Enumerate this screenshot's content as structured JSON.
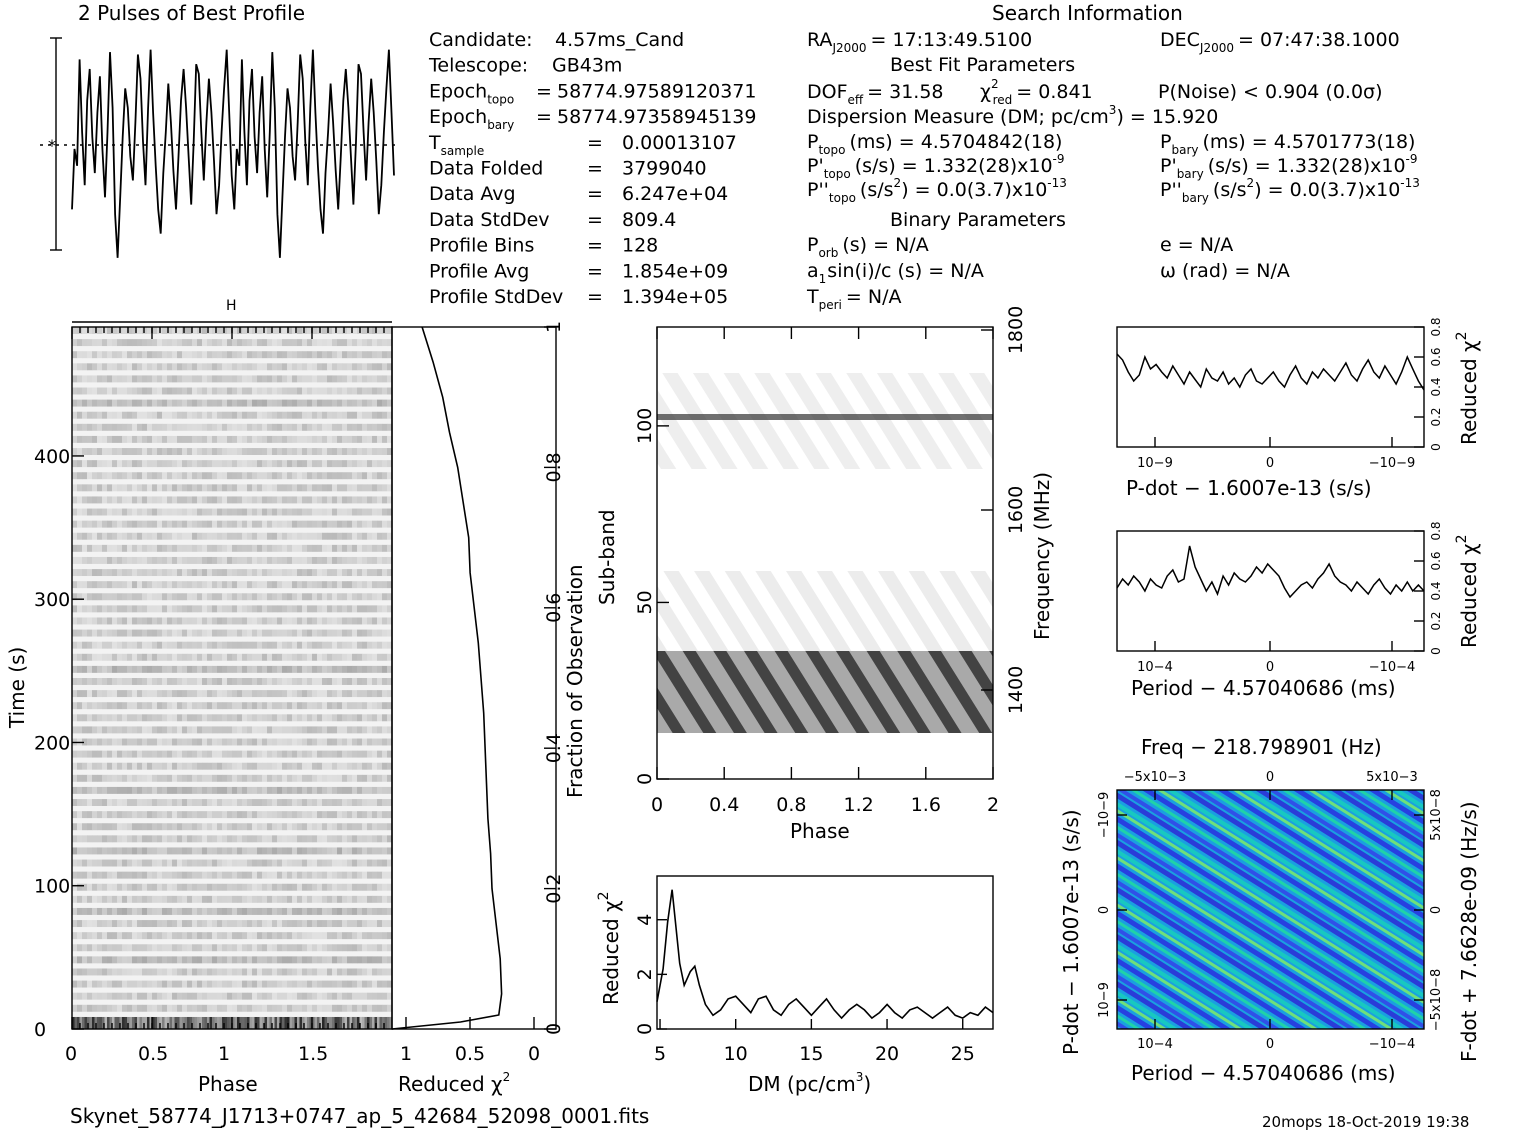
{
  "figure": {
    "top_left_title": "2 Pulses of Best Profile",
    "search_info_title": "Search Information",
    "best_fit_title": "Best Fit Parameters",
    "binary_title": "Binary Parameters",
    "footer_file": "Skynet_58774_J1713+0747_ap_5_42684_52098_0001.fits",
    "footer_stamp": "20mops 18-Oct-2019 19:38"
  },
  "candidate_info": [
    {
      "label": "Candidate:",
      "sub": "",
      "eq": "",
      "value": "4.57ms_Cand"
    },
    {
      "label": "Telescope:",
      "sub": "",
      "eq": "",
      "value": "GB43m"
    },
    {
      "label": "Epoch",
      "sub": "topo",
      "eq": "=",
      "value": "58774.97589120371"
    },
    {
      "label": "Epoch",
      "sub": "bary",
      "eq": "=",
      "value": "58774.97358945139"
    },
    {
      "label": "T",
      "sub": "sample",
      "eq": "=",
      "value": "0.00013107"
    },
    {
      "label": "Data Folded",
      "sub": "",
      "eq": "=",
      "value": "3799040"
    },
    {
      "label": "Data Avg",
      "sub": "",
      "eq": "=",
      "value": "6.247e+04"
    },
    {
      "label": "Data StdDev",
      "sub": "",
      "eq": "=",
      "value": "809.4"
    },
    {
      "label": "Profile Bins",
      "sub": "",
      "eq": "=",
      "value": "128"
    },
    {
      "label": "Profile Avg",
      "sub": "",
      "eq": "=",
      "value": "1.854e+09"
    },
    {
      "label": "Profile StdDev",
      "sub": "",
      "eq": "=",
      "value": "1.394e+05"
    }
  ],
  "search_info": {
    "ra_label": "RA",
    "ra_sub": "J2000",
    "ra_value": "= 17:13:49.5100",
    "dec_label": "DEC",
    "dec_sub": "J2000",
    "dec_value": "= 07:47:38.1000",
    "dof_label": "DOF",
    "dof_sub": "eff",
    "dof_value": "= 31.58",
    "chi_label": "χ",
    "chi_sup": "2",
    "chi_sub": "red",
    "chi_value": "= 0.841",
    "pnoise": "P(Noise) < 0.904   (0.0σ)",
    "dm_line": "Dispersion Measure (DM; pc/cm",
    "dm_sup": "3",
    "dm_tail": ") = 15.920",
    "p_topo_label": "P",
    "p_topo_sub": "topo",
    "p_topo_value": "(ms)  =  4.5704842(18)",
    "p_bary_label": "P",
    "p_bary_sub": "bary",
    "p_bary_value": "(ms)  =  4.5701773(18)",
    "pd_topo_label": "P'",
    "pd_topo_sub": "topo",
    "pd_topo_value": "(s/s) =  1.332(28)x10",
    "pd_topo_exp": "-9",
    "pd_bary_label": "P'",
    "pd_bary_sub": "bary",
    "pd_bary_value": "(s/s) =  1.332(28)x10",
    "pd_bary_exp": "-9",
    "pdd_topo_label": "P''",
    "pdd_topo_sub": "topo",
    "pdd_topo_value": "(s/s",
    "pdd_topo_sup": "2",
    "pdd_topo_tail": ") = 0.0(3.7)x10",
    "pdd_topo_exp": "-13",
    "pdd_bary_label": "P''",
    "pdd_bary_sub": "bary",
    "pdd_bary_value": "(s/s",
    "pdd_bary_sup": "2",
    "pdd_bary_tail": ") = 0.0(3.7)x10",
    "pdd_bary_exp": "-13",
    "porb_label": "P",
    "porb_sub": "orb",
    "porb_value": "(s) = N/A",
    "e_line": "e = N/A",
    "a1_label": "a",
    "a1_sub": "1",
    "a1_value": "sin(i)/c (s) = N/A",
    "omega_line": "ω (rad) = N/A",
    "tperi_label": "T",
    "tperi_sub": "peri",
    "tperi_value": "= N/A"
  },
  "axes_text": {
    "time_ylabel": "Time (s)",
    "phase_xlabel": "Phase",
    "redchi_xlabel": "Reduced χ",
    "redchi_sup": "2",
    "fraction_ylabel": "Fraction of Observation",
    "subband_ylabel": "Sub-band",
    "freq_ylabel": "Frequency (MHz)",
    "phase2_xlabel": "Phase",
    "dm_xlabel": "DM (pc/cm",
    "dm_sup": "3",
    "dm_xtail": ")",
    "dm_ylabel": "Reduced χ",
    "dm_ysup": "2",
    "pdot_xlabel": "P-dot − 1.6007e-13 (s/s)",
    "period_xlabel": "Period − 4.57040686 (ms)",
    "redchi_side": "Reduced χ",
    "redchi_side_sup": "2",
    "freq_top": "Freq − 218.798901 (Hz)",
    "pdot_left": "P-dot − 1.6007e-13 (s/s)",
    "fdot_right": "F-dot + 7.6628e-09 (Hz/s)",
    "period_bottom": "Period − 4.57040686 (ms)"
  },
  "chart_data": [
    {
      "type": "line",
      "title": "2 Pulses of Best Profile",
      "phase_range": [
        0,
        2
      ],
      "bins": 128,
      "values": [
        0.3,
        0.55,
        0.48,
        0.92,
        0.62,
        0.4,
        0.75,
        0.88,
        0.6,
        0.45,
        0.7,
        0.85,
        0.55,
        0.35,
        0.62,
        0.95,
        0.72,
        0.28,
        0.1,
        0.35,
        0.6,
        0.8,
        0.72,
        0.52,
        0.42,
        0.66,
        0.94,
        0.84,
        0.58,
        0.4,
        0.72,
        0.96,
        0.7,
        0.48,
        0.3,
        0.2,
        0.45,
        0.62,
        0.82,
        0.66,
        0.46,
        0.3,
        0.52,
        0.75,
        0.88,
        0.72,
        0.52,
        0.32,
        0.58,
        0.9,
        0.86,
        0.62,
        0.42,
        0.66,
        0.84,
        0.7,
        0.5,
        0.28,
        0.4,
        0.62,
        0.8,
        0.96,
        0.7,
        0.44,
        0.3,
        0.55,
        0.48,
        0.92,
        0.62,
        0.4,
        0.75,
        0.88,
        0.6,
        0.45,
        0.7,
        0.85,
        0.55,
        0.35,
        0.62,
        0.95,
        0.72,
        0.28,
        0.1,
        0.35,
        0.6,
        0.8,
        0.72,
        0.52,
        0.42,
        0.66,
        0.94,
        0.84,
        0.58,
        0.4,
        0.72,
        0.96,
        0.7,
        0.48,
        0.3,
        0.2,
        0.45,
        0.62,
        0.82,
        0.66,
        0.46,
        0.3,
        0.52,
        0.75,
        0.88,
        0.72,
        0.52,
        0.32,
        0.58,
        0.9,
        0.86,
        0.62,
        0.42,
        0.66,
        0.84,
        0.7,
        0.5,
        0.28,
        0.4,
        0.62,
        0.8,
        0.96,
        0.7,
        0.44
      ]
    },
    {
      "type": "heatmap",
      "name": "time-phase",
      "xlabel": "Phase",
      "ylabel": "Time (s)",
      "xlim": [
        0,
        2
      ],
      "ylim": [
        0,
        490
      ],
      "xticks": [
        "0",
        "0.5",
        "1",
        "1.5"
      ],
      "yticks": [
        "0",
        "100",
        "200",
        "300",
        "400"
      ]
    },
    {
      "type": "line",
      "name": "cumulative-reduced-chi2",
      "xlabel": "Reduced χ2",
      "ylabel": "Fraction of Observation",
      "xlim": [
        1,
        0
      ],
      "ylim": [
        0,
        1
      ],
      "xticks": [
        "1",
        "0.5",
        "0"
      ],
      "yticks": [
        "0",
        "0.2",
        "0.4",
        "0.6",
        "0.8",
        "1"
      ],
      "frac": [
        0.0,
        0.01,
        0.02,
        0.05,
        0.1,
        0.15,
        0.2,
        0.25,
        0.3,
        0.35,
        0.4,
        0.45,
        0.5,
        0.55,
        0.6,
        0.65,
        0.7,
        0.75,
        0.8,
        0.85,
        0.9,
        0.95,
        1.0
      ],
      "chi": [
        1.0,
        0.5,
        0.22,
        0.2,
        0.21,
        0.24,
        0.27,
        0.28,
        0.3,
        0.31,
        0.32,
        0.33,
        0.35,
        0.37,
        0.4,
        0.43,
        0.44,
        0.48,
        0.52,
        0.58,
        0.63,
        0.7,
        0.78
      ]
    },
    {
      "type": "heatmap",
      "name": "subband-phase",
      "xlabel": "Phase",
      "ylabel": "Sub-band",
      "xlim": [
        0,
        2
      ],
      "ylim": [
        0,
        128
      ],
      "xticks": [
        "0",
        "0.4",
        "0.8",
        "1.2",
        "1.6",
        "2"
      ],
      "yticks": [
        "0",
        "50",
        "100"
      ],
      "freq_ticks": [
        "1400",
        "1600",
        "1800"
      ]
    },
    {
      "type": "line",
      "name": "dm-curve",
      "xlabel": "DM (pc/cm3)",
      "ylabel": "Reduced χ2",
      "xlim": [
        4.8,
        27
      ],
      "ylim": [
        0,
        5.6
      ],
      "xticks": [
        "5",
        "10",
        "15",
        "20",
        "25"
      ],
      "yticks": [
        "0",
        "2",
        "4"
      ],
      "x": [
        4.8,
        5.2,
        5.5,
        5.8,
        6.0,
        6.3,
        6.6,
        7.0,
        7.3,
        7.6,
        8.0,
        8.5,
        9.0,
        9.5,
        10.0,
        10.5,
        11.0,
        11.5,
        12.0,
        12.5,
        13.0,
        13.5,
        14.0,
        14.5,
        15.0,
        15.5,
        16.0,
        16.5,
        17.0,
        17.5,
        18.0,
        18.5,
        19.0,
        19.5,
        20.0,
        20.5,
        21.0,
        21.5,
        22.0,
        22.5,
        23.0,
        23.5,
        24.0,
        24.5,
        25.0,
        25.5,
        26.0,
        26.5,
        27.0
      ],
      "y": [
        1.0,
        2.2,
        3.9,
        5.1,
        4.0,
        2.4,
        1.6,
        2.1,
        2.3,
        1.6,
        0.9,
        0.5,
        0.7,
        1.1,
        1.2,
        0.9,
        0.6,
        1.1,
        1.2,
        0.7,
        0.5,
        0.9,
        1.1,
        0.8,
        0.5,
        0.8,
        1.1,
        0.7,
        0.4,
        0.7,
        0.9,
        0.7,
        0.4,
        0.6,
        0.9,
        0.6,
        0.4,
        0.7,
        0.8,
        0.6,
        0.4,
        0.6,
        0.8,
        0.5,
        0.4,
        0.6,
        0.5,
        0.8,
        0.6
      ]
    },
    {
      "type": "line",
      "name": "pdot-curve",
      "xlabel": "P-dot − 1.6007e-13 (s/s)",
      "ylabel": "Reduced χ2",
      "ylim": [
        0,
        0.8
      ],
      "xticks": [
        "10−9",
        "0",
        "−10−9"
      ],
      "yticks": [
        "0",
        "0.2",
        "0.4",
        "0.6",
        "0.8"
      ],
      "values": [
        0.62,
        0.58,
        0.5,
        0.44,
        0.48,
        0.6,
        0.52,
        0.55,
        0.5,
        0.46,
        0.54,
        0.48,
        0.42,
        0.5,
        0.45,
        0.4,
        0.52,
        0.46,
        0.44,
        0.5,
        0.42,
        0.46,
        0.4,
        0.48,
        0.52,
        0.44,
        0.42,
        0.46,
        0.5,
        0.44,
        0.4,
        0.48,
        0.54,
        0.46,
        0.42,
        0.5,
        0.46,
        0.52,
        0.48,
        0.44,
        0.5,
        0.56,
        0.48,
        0.44,
        0.52,
        0.58,
        0.5,
        0.46,
        0.54,
        0.48,
        0.42,
        0.5,
        0.6,
        0.52,
        0.44,
        0.38
      ]
    },
    {
      "type": "line",
      "name": "period-curve",
      "xlabel": "Period − 4.57040686 (ms)",
      "ylabel": "Reduced χ2",
      "ylim": [
        0,
        0.8
      ],
      "xticks": [
        "10−4",
        "0",
        "−10−4"
      ],
      "yticks": [
        "0",
        "0.2",
        "0.4",
        "0.6",
        "0.8"
      ],
      "values": [
        0.42,
        0.48,
        0.44,
        0.5,
        0.46,
        0.4,
        0.48,
        0.44,
        0.42,
        0.5,
        0.54,
        0.46,
        0.48,
        0.7,
        0.56,
        0.48,
        0.4,
        0.46,
        0.38,
        0.5,
        0.44,
        0.52,
        0.48,
        0.46,
        0.5,
        0.56,
        0.52,
        0.58,
        0.54,
        0.5,
        0.42,
        0.36,
        0.4,
        0.44,
        0.46,
        0.42,
        0.48,
        0.52,
        0.58,
        0.5,
        0.46,
        0.44,
        0.4,
        0.46,
        0.42,
        0.38,
        0.44,
        0.48,
        0.42,
        0.38,
        0.44,
        0.4,
        0.46,
        0.4,
        0.44,
        0.4
      ]
    },
    {
      "type": "heatmap",
      "name": "period-pdot",
      "xlabel": "Period − 4.57040686 (ms)",
      "ylabel": "P-dot − 1.6007e-13 (s/s)",
      "top_label": "Freq − 218.798901 (Hz)",
      "right_label": "F-dot + 7.6628e-09 (Hz/s)",
      "xticks": [
        "10−4",
        "0",
        "−10−4"
      ],
      "yticks": [
        "−10−9",
        "0",
        "10−9"
      ],
      "top_ticks": [
        "−5x10−3",
        "0",
        "5x10−3"
      ],
      "right_ticks": [
        "5x10−8",
        "0",
        "−5x10−8"
      ]
    }
  ]
}
